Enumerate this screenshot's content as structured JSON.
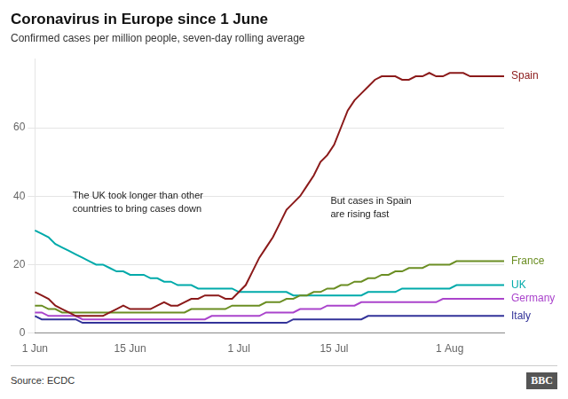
{
  "chart_data": {
    "type": "line",
    "title": "Coronavirus in Europe since 1 June",
    "subtitle": "Confirmed cases per million people, seven-day rolling average",
    "source": "Source: ECDC",
    "credit": "BBC",
    "annotations": [
      "The UK took longer than other\ncountries to bring cases down",
      "But cases in Spain\nare rising fast"
    ],
    "categories": [
      "1 Jun",
      null,
      null,
      null,
      null,
      null,
      null,
      null,
      null,
      null,
      null,
      null,
      null,
      null,
      "15 Jun",
      null,
      null,
      null,
      null,
      null,
      null,
      null,
      null,
      null,
      null,
      null,
      null,
      null,
      null,
      null,
      "1 Jul",
      null,
      null,
      null,
      null,
      null,
      null,
      null,
      null,
      null,
      null,
      null,
      null,
      null,
      "15 Jul",
      null,
      null,
      null,
      null,
      null,
      null,
      null,
      null,
      null,
      null,
      null,
      null,
      null,
      null,
      null,
      null,
      "1 Aug",
      null,
      null,
      null,
      null,
      null,
      null,
      null,
      null
    ],
    "series": [
      {
        "name": "Spain",
        "color": "#8B1A1A",
        "values": [
          12,
          11,
          10,
          8,
          7,
          6,
          5,
          5,
          5,
          5,
          5,
          6,
          7,
          8,
          7,
          7,
          7,
          7,
          8,
          9,
          8,
          8,
          9,
          10,
          10,
          11,
          11,
          11,
          10,
          10,
          12,
          14,
          18,
          22,
          25,
          28,
          32,
          36,
          38,
          40,
          43,
          46,
          50,
          52,
          55,
          60,
          65,
          68,
          70,
          72,
          74,
          75,
          75,
          75,
          74,
          74,
          75,
          75,
          76,
          75,
          75,
          76,
          76,
          76,
          75,
          75,
          75,
          75,
          75,
          75
        ]
      },
      {
        "name": "France",
        "color": "#6B8E23",
        "values": [
          8,
          8,
          7,
          7,
          6,
          6,
          6,
          6,
          6,
          6,
          6,
          6,
          6,
          6,
          6,
          6,
          6,
          6,
          6,
          6,
          6,
          6,
          6,
          7,
          7,
          7,
          7,
          7,
          7,
          8,
          8,
          8,
          8,
          8,
          9,
          9,
          9,
          10,
          10,
          11,
          11,
          12,
          12,
          13,
          13,
          14,
          14,
          15,
          15,
          16,
          16,
          17,
          17,
          18,
          18,
          19,
          19,
          19,
          20,
          20,
          20,
          20,
          21,
          21,
          21,
          21,
          21,
          21,
          21,
          21
        ]
      },
      {
        "name": "UK",
        "color": "#00AAAA",
        "values": [
          30,
          29,
          28,
          26,
          25,
          24,
          23,
          22,
          21,
          20,
          20,
          19,
          18,
          18,
          17,
          17,
          17,
          16,
          16,
          15,
          15,
          14,
          14,
          14,
          13,
          13,
          13,
          13,
          13,
          13,
          12,
          12,
          12,
          12,
          12,
          12,
          12,
          12,
          11,
          11,
          11,
          11,
          11,
          11,
          11,
          11,
          11,
          11,
          11,
          12,
          12,
          12,
          12,
          12,
          13,
          13,
          13,
          13,
          13,
          13,
          13,
          13,
          14,
          14,
          14,
          14,
          14,
          14,
          14,
          14
        ]
      },
      {
        "name": "Germany",
        "color": "#AA44CC",
        "values": [
          6,
          6,
          5,
          5,
          5,
          5,
          5,
          4,
          4,
          4,
          4,
          4,
          4,
          4,
          4,
          4,
          4,
          4,
          4,
          4,
          4,
          4,
          4,
          4,
          4,
          4,
          5,
          5,
          5,
          5,
          5,
          5,
          5,
          5,
          6,
          6,
          6,
          6,
          6,
          7,
          7,
          7,
          7,
          8,
          8,
          8,
          8,
          8,
          9,
          9,
          9,
          9,
          9,
          9,
          9,
          9,
          9,
          9,
          9,
          9,
          10,
          10,
          10,
          10,
          10,
          10,
          10,
          10,
          10,
          10
        ]
      },
      {
        "name": "Italy",
        "color": "#333399",
        "values": [
          5,
          4,
          4,
          4,
          4,
          4,
          4,
          3,
          3,
          3,
          3,
          3,
          3,
          3,
          3,
          3,
          3,
          3,
          3,
          3,
          3,
          3,
          3,
          3,
          3,
          3,
          3,
          3,
          3,
          3,
          3,
          3,
          3,
          3,
          3,
          3,
          3,
          3,
          4,
          4,
          4,
          4,
          4,
          4,
          4,
          4,
          4,
          4,
          4,
          5,
          5,
          5,
          5,
          5,
          5,
          5,
          5,
          5,
          5,
          5,
          5,
          5,
          5,
          5,
          5,
          5,
          5,
          5,
          5,
          5
        ]
      }
    ],
    "ylim": [
      0,
      80
    ],
    "yticks": [
      0,
      20,
      40,
      60
    ],
    "grid": true
  }
}
